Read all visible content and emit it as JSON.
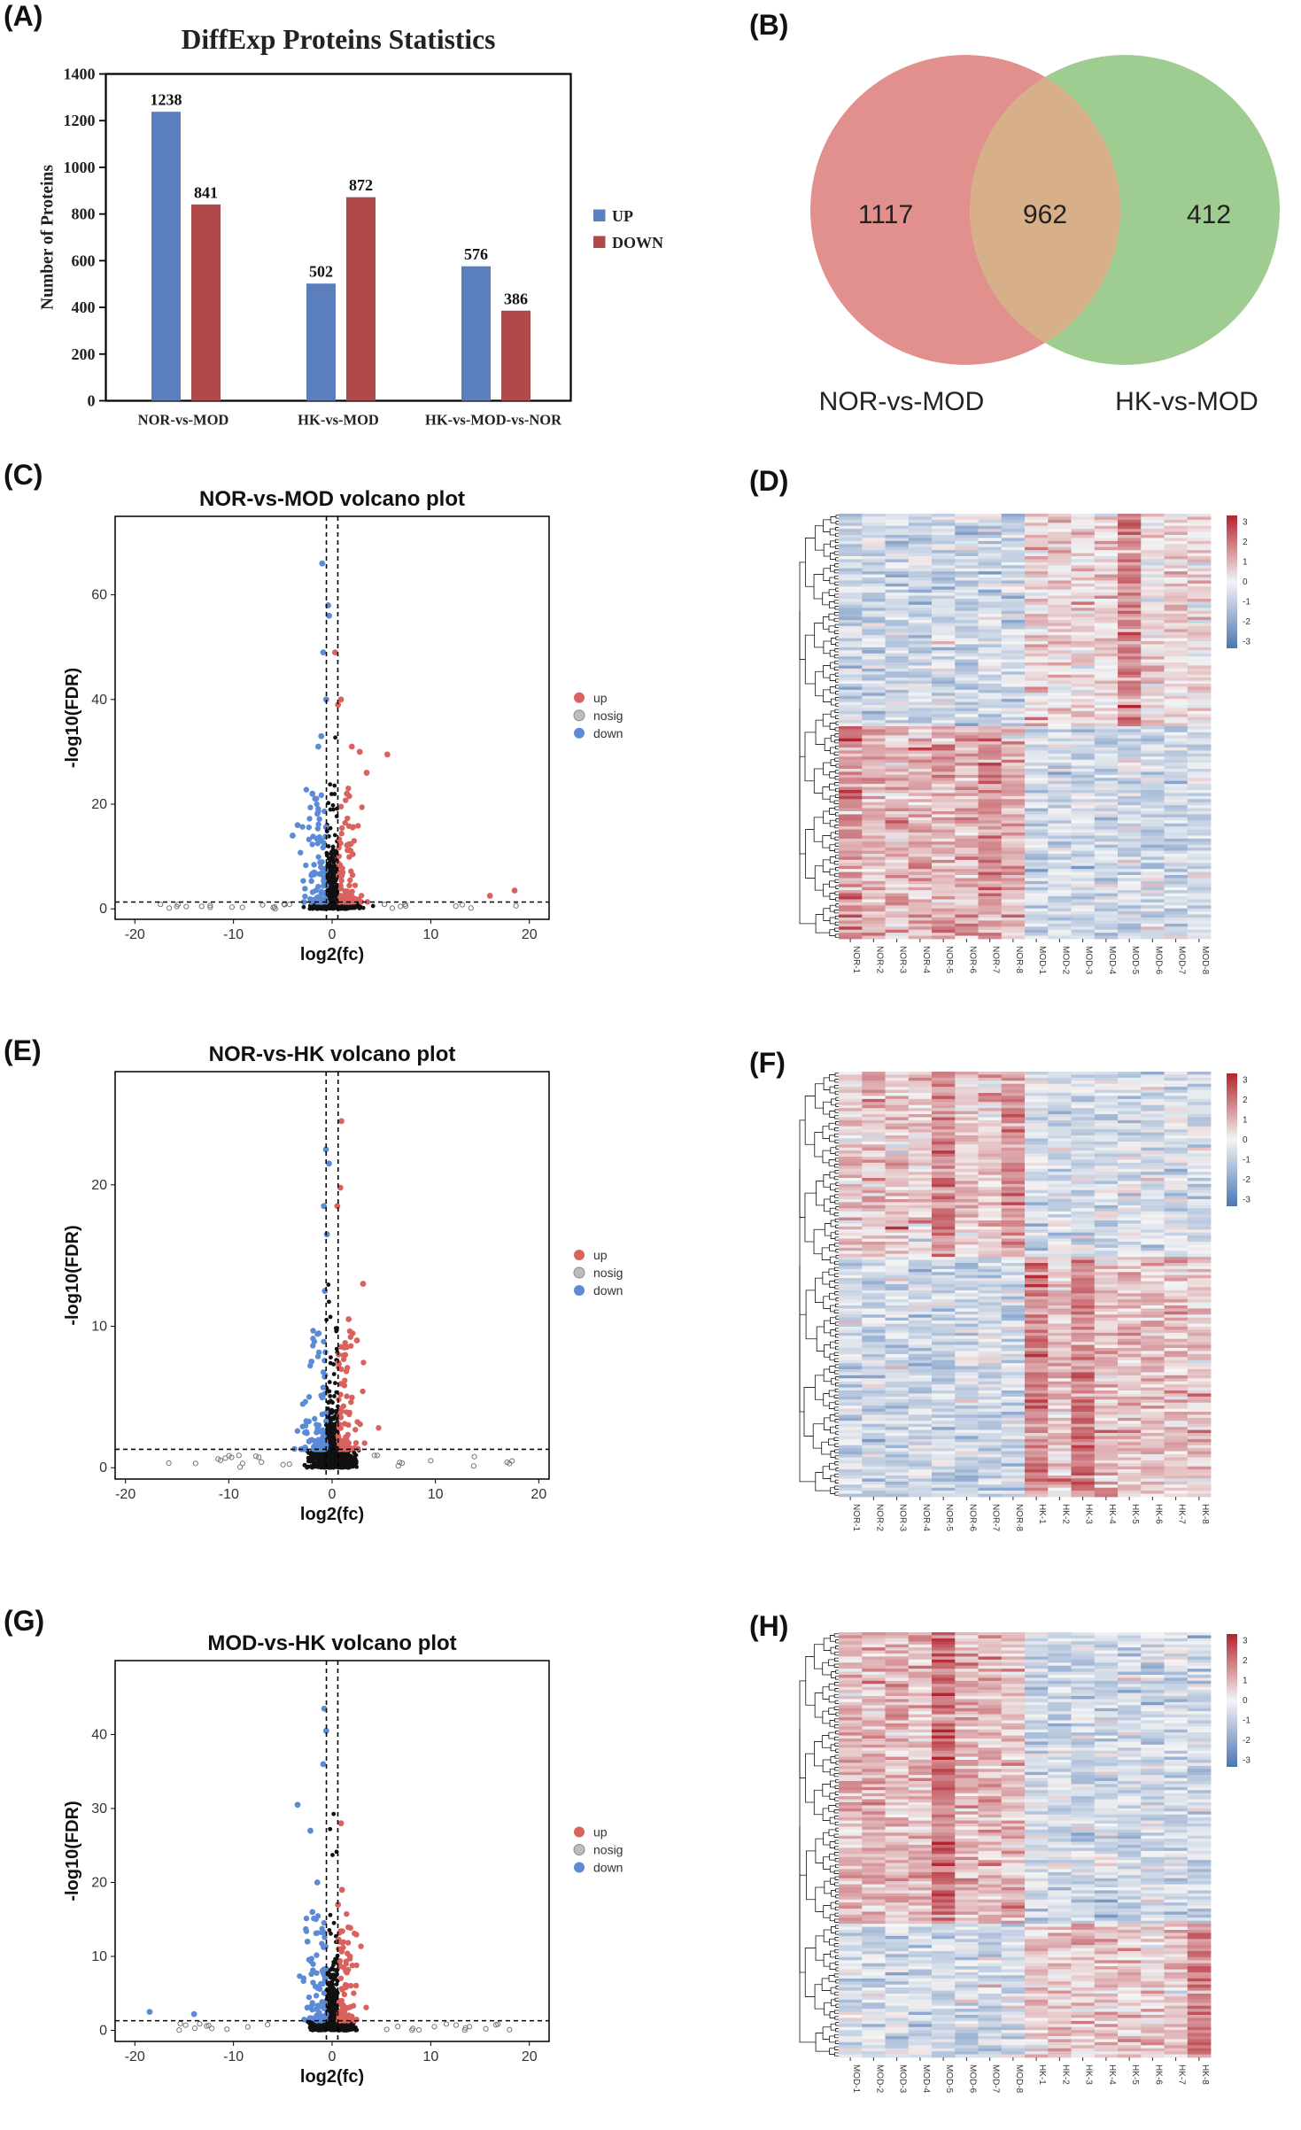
{
  "panel_labels": [
    "(A)",
    "(B)",
    "(C)",
    "(D)",
    "(E)",
    "(F)",
    "(G)",
    "(H)"
  ],
  "chart_data": [
    {
      "id": "A",
      "type": "bar",
      "title": "DiffExp  Proteins  Statistics",
      "ylabel": "Number  of Proteins",
      "xlabel": "",
      "categories": [
        "NOR-vs-MOD",
        "HK-vs-MOD",
        "HK-vs-MOD-vs-NOR"
      ],
      "series": [
        {
          "name": "UP",
          "values": [
            1238,
            502,
            576
          ],
          "color": "#5b7fbd"
        },
        {
          "name": "DOWN",
          "values": [
            841,
            872,
            386
          ],
          "color": "#b04a4a"
        }
      ],
      "ylim": [
        0,
        1400
      ],
      "yticks": [
        0,
        200,
        400,
        600,
        800,
        1000,
        1200,
        1400
      ],
      "legend": "right"
    },
    {
      "id": "B",
      "type": "venn",
      "sets": [
        {
          "name": "NOR-vs-MOD",
          "only": 1117,
          "color": "#e08a88"
        },
        {
          "name": "HK-vs-MOD",
          "only": 412,
          "color": "#9ac98a"
        }
      ],
      "intersection": 962
    },
    {
      "id": "C",
      "type": "scatter",
      "title": "NOR-vs-MOD volcano plot",
      "xlabel": "log2(fc)",
      "ylabel": "-log10(FDR)",
      "xlim": [
        -22,
        22
      ],
      "ylim": [
        -2,
        75
      ],
      "xticks": [
        -20,
        -10,
        0,
        10,
        20
      ],
      "yticks": [
        0,
        20,
        40,
        60
      ],
      "thresholds": {
        "fc": 0.58,
        "fdr": 1.3
      },
      "legend": [
        "up",
        "nosig",
        "down"
      ],
      "highlights": {
        "up": [
          [
            0.3,
            49
          ],
          [
            0.9,
            40
          ],
          [
            0.6,
            39
          ],
          [
            2.0,
            31
          ],
          [
            5.6,
            29.5
          ],
          [
            2.8,
            30
          ],
          [
            3.5,
            26
          ],
          [
            18.5,
            3.5
          ],
          [
            16,
            2.5
          ],
          [
            1.5,
            22
          ]
        ],
        "down": [
          [
            -1.0,
            66
          ],
          [
            -0.4,
            58
          ],
          [
            -0.9,
            49
          ],
          [
            -0.6,
            40
          ],
          [
            -1.4,
            31
          ],
          [
            -2.0,
            22
          ],
          [
            -3.5,
            16
          ],
          [
            -4.0,
            14
          ],
          [
            -0.3,
            56
          ],
          [
            -1.1,
            33
          ]
        ]
      }
    },
    {
      "id": "D",
      "type": "heatmap",
      "columns": [
        "NOR-1",
        "NOR-2",
        "NOR-3",
        "NOR-4",
        "NOR-5",
        "NOR-6",
        "NOR-7",
        "NOR-8",
        "MOD-1",
        "MOD-2",
        "MOD-3",
        "MOD-4",
        "MOD-5",
        "MOD-6",
        "MOD-7",
        "MOD-8"
      ],
      "colorbar": {
        "ticks": [
          3,
          2,
          1,
          0,
          -1,
          -2,
          -3
        ],
        "low": "#4a76b4",
        "mid": "#f4f4f4",
        "high": "#b2242e"
      }
    },
    {
      "id": "E",
      "type": "scatter",
      "title": "NOR-vs-HK volcano plot",
      "xlabel": "log2(fc)",
      "ylabel": "-log10(FDR)",
      "xlim": [
        -21,
        21
      ],
      "ylim": [
        -0.8,
        28
      ],
      "xticks": [
        -20,
        -10,
        0,
        10,
        20
      ],
      "yticks": [
        0,
        10,
        20
      ],
      "thresholds": {
        "fc": 0.58,
        "fdr": 1.3
      },
      "legend": [
        "up",
        "nosig",
        "down"
      ],
      "highlights": {
        "up": [
          [
            0.9,
            24.5
          ],
          [
            0.8,
            19.8
          ],
          [
            0.5,
            18.5
          ],
          [
            3.0,
            13
          ],
          [
            1.6,
            10.5
          ],
          [
            2.4,
            9
          ],
          [
            1.2,
            8.5
          ]
        ],
        "down": [
          [
            -0.6,
            22.5
          ],
          [
            -0.3,
            21.5
          ],
          [
            -0.8,
            18.5
          ],
          [
            -0.7,
            12.5
          ],
          [
            -1.3,
            9.5
          ],
          [
            -2.0,
            7.5
          ],
          [
            -0.5,
            16.5
          ]
        ]
      }
    },
    {
      "id": "F",
      "type": "heatmap",
      "columns": [
        "NOR-1",
        "NOR-2",
        "NOR-3",
        "NOR-4",
        "NOR-5",
        "NOR-6",
        "NOR-7",
        "NOR-8",
        "HK-1",
        "HK-2",
        "HK-3",
        "HK-4",
        "HK-5",
        "HK-6",
        "HK-7",
        "HK-8"
      ],
      "colorbar": {
        "ticks": [
          3,
          2,
          1,
          0,
          -1,
          -2,
          -3
        ],
        "low": "#4a76b4",
        "mid": "#f4f4f4",
        "high": "#b2242e"
      }
    },
    {
      "id": "G",
      "type": "scatter",
      "title": "MOD-vs-HK volcano plot",
      "xlabel": "log2(fc)",
      "ylabel": "-log10(FDR)",
      "xlim": [
        -22,
        22
      ],
      "ylim": [
        -1.5,
        50
      ],
      "xticks": [
        -20,
        -10,
        0,
        10,
        20
      ],
      "yticks": [
        0,
        10,
        20,
        30,
        40
      ],
      "thresholds": {
        "fc": 0.58,
        "fdr": 1.3
      },
      "legend": [
        "up",
        "nosig",
        "down"
      ],
      "highlights": {
        "up": [
          [
            0.9,
            28
          ],
          [
            1.0,
            19
          ],
          [
            0.6,
            17
          ],
          [
            1.8,
            10
          ],
          [
            0.7,
            12
          ],
          [
            1.4,
            8
          ]
        ],
        "down": [
          [
            -0.8,
            43.5
          ],
          [
            -0.6,
            40.5
          ],
          [
            -3.5,
            30.5
          ],
          [
            -2.2,
            27
          ],
          [
            -1.5,
            20
          ],
          [
            -2.0,
            16
          ],
          [
            -2.5,
            12
          ],
          [
            -18.5,
            2.5
          ],
          [
            -14,
            2.2
          ],
          [
            -0.9,
            36
          ]
        ]
      }
    },
    {
      "id": "H",
      "type": "heatmap",
      "columns": [
        "MOD-1",
        "MOD-2",
        "MOD-3",
        "MOD-4",
        "MOD-5",
        "MOD-6",
        "MOD-7",
        "MOD-8",
        "HK-1",
        "HK-2",
        "HK-3",
        "HK-4",
        "HK-5",
        "HK-6",
        "HK-7",
        "HK-8"
      ],
      "colorbar": {
        "ticks": [
          3,
          2,
          1,
          0,
          -1,
          -2,
          -3
        ],
        "low": "#4a76b4",
        "mid": "#f4f4f4",
        "high": "#b2242e"
      }
    }
  ]
}
